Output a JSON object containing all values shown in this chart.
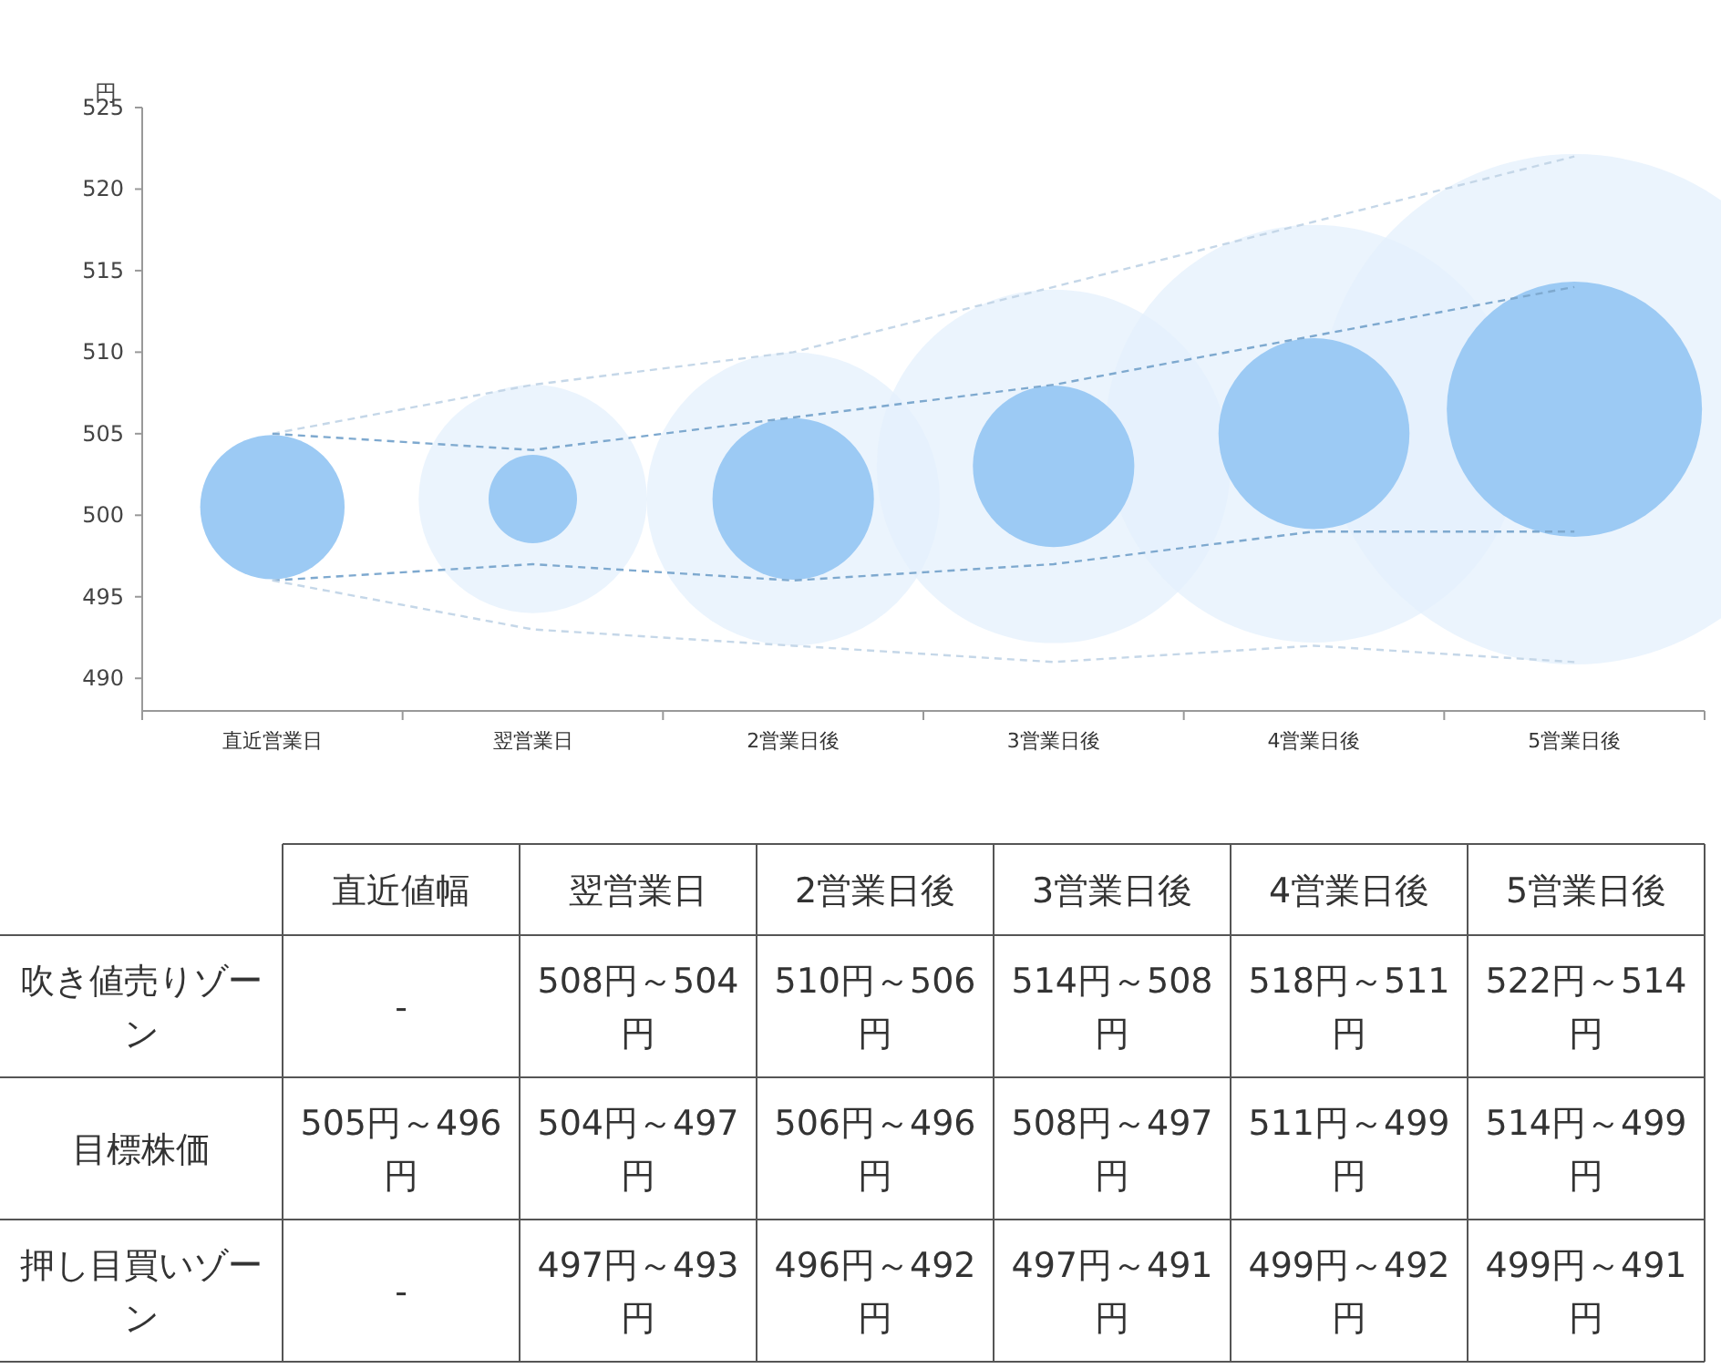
{
  "chart_data": [
    {
      "type": "bubble",
      "ylabel": "円",
      "categories": [
        "直近営業日",
        "翌営業日",
        "2営業日後",
        "3営業日後",
        "4営業日後",
        "5営業日後"
      ],
      "ylim": [
        488,
        525
      ],
      "yticks": [
        490,
        495,
        500,
        505,
        510,
        515,
        520,
        525
      ],
      "grid": false,
      "relative": false,
      "series": [
        {
          "type": "bubble",
          "color": "#9ccaf4",
          "values": [
            500.5,
            501,
            501,
            503,
            505,
            506.5
          ],
          "sizes": [
            0.08,
            0.03,
            0.1,
            0.1,
            0.14,
            0.25
          ]
        },
        {
          "type": "bubble",
          "color": "#e4f0fc",
          "values": [
            null,
            501,
            501,
            503,
            505,
            506.5
          ],
          "sizes": [
            null,
            0.2,
            0.33,
            0.48,
            0.67,
            1
          ]
        },
        {
          "type": "line",
          "line_style": "dashed",
          "color": "#c5d7e8",
          "values": [
            505,
            508,
            510,
            514,
            518,
            522
          ]
        },
        {
          "type": "line",
          "line_style": "dashed",
          "color": "#7ea9cf",
          "values": [
            505,
            504,
            506,
            508,
            511,
            514
          ]
        },
        {
          "type": "line",
          "line_style": "dashed",
          "color": "#7ea9cf",
          "values": [
            496,
            497,
            496,
            497,
            499,
            499
          ]
        },
        {
          "type": "line",
          "line_style": "dashed",
          "color": "#c5d7e8",
          "values": [
            496,
            493,
            492,
            491,
            492,
            491
          ]
        }
      ]
    },
    {
      "type": "heatmap",
      "categories": [
        "直近値幅",
        "翌営業日",
        "2営業日後",
        "3営業日後",
        "4営業日後",
        "5営業日後"
      ],
      "y_categories": [
        "吹き値売りゾーン",
        "目標株価",
        "押し目買いゾーン"
      ],
      "cells": [
        [
          null,
          null,
          null,
          null,
          null,
          null
        ],
        [
          null,
          null,
          null,
          null,
          null,
          null
        ],
        [
          null,
          null,
          null,
          null,
          null,
          null
        ]
      ],
      "cell_labels": [
        [
          "-",
          "508円～504円",
          "510円～506円",
          "514円～508円",
          "518円～511円",
          "522円～514円"
        ],
        [
          "505円～496円",
          "504円～497円",
          "506円～496円",
          "508円～497円",
          "511円～499円",
          "514円～499円"
        ],
        [
          "-",
          "497円～493円",
          "496円～492円",
          "497円～491円",
          "499円～492円",
          "499円～491円"
        ]
      ]
    }
  ]
}
